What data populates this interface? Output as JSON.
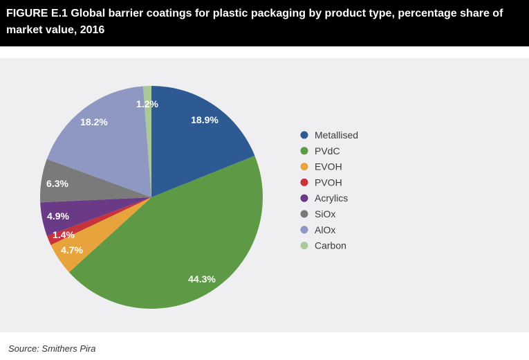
{
  "header": {
    "title": "FIGURE E.1 Global barrier coatings for plastic packaging by product type, percentage share of market value, 2016"
  },
  "footer": {
    "source": "Source: Smithers Pira"
  },
  "chart_data": {
    "type": "pie",
    "title": "FIGURE E.1 Global barrier coatings for plastic packaging by product type, percentage share of market value, 2016",
    "legend_position": "right",
    "slices": [
      {
        "label": "Metallised",
        "value": 18.9,
        "display": "18.9%",
        "color": "#2e5a93"
      },
      {
        "label": "PVdC",
        "value": 44.3,
        "display": "44.3%",
        "color": "#5e9a45"
      },
      {
        "label": "EVOH",
        "value": 4.7,
        "display": "4.7%",
        "color": "#e8a43c"
      },
      {
        "label": "PVOH",
        "value": 1.4,
        "display": "1.4%",
        "color": "#c8323a"
      },
      {
        "label": "Acrylics",
        "value": 4.9,
        "display": "4.9%",
        "color": "#6b3a86"
      },
      {
        "label": "SiOx",
        "value": 6.3,
        "display": "6.3%",
        "color": "#7a7a7a"
      },
      {
        "label": "AlOx",
        "value": 18.2,
        "display": "18.2%",
        "color": "#8f98c2"
      },
      {
        "label": "Carbon",
        "value": 1.2,
        "display": "1.2%",
        "color": "#a9c99a"
      }
    ]
  }
}
